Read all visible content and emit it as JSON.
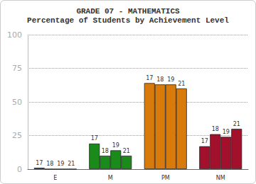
{
  "chart_data": {
    "type": "bar",
    "title": "GRADE 07 - MATHEMATICS",
    "subtitle": "Percentage of Students by Achievement Level",
    "categories": [
      "E",
      "M",
      "PM",
      "NM"
    ],
    "colors": [
      "#0b1a6b",
      "#1a8a1a",
      "#d97b0a",
      "#a3102b"
    ],
    "series": [
      {
        "name": "17",
        "values": [
          1,
          19,
          64,
          17
        ]
      },
      {
        "name": "18",
        "values": [
          0,
          10,
          63,
          26
        ]
      },
      {
        "name": "19",
        "values": [
          0,
          14,
          63,
          24
        ]
      },
      {
        "name": "21",
        "values": [
          0,
          10,
          60,
          30
        ]
      }
    ],
    "ylim": [
      0,
      100
    ],
    "yticks": [
      0,
      25,
      50,
      75,
      100
    ],
    "grid": true
  }
}
